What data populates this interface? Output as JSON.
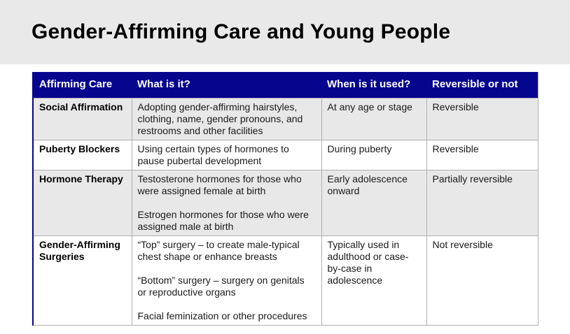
{
  "page": {
    "title": "Gender-Affirming Care and Young People"
  },
  "colors": {
    "header_bg": "#05058e",
    "header_text": "#ffffff",
    "alt_row_bg": "#e8e8e8",
    "title_band_bg": "#e9e9e9",
    "table_border": "#b0b0b0",
    "accent_left_border": "#05058e"
  },
  "table": {
    "headers": [
      "Affirming Care",
      "What is it?",
      "When is it used?",
      "Reversible or not"
    ],
    "rows": [
      {
        "care": "Social Affirmation",
        "what": [
          "Adopting gender-affirming hairstyles, clothing, name, gender pronouns, and restrooms and other facilities"
        ],
        "when": "At any age or stage",
        "reversible": "Reversible"
      },
      {
        "care": "Puberty Blockers",
        "what": [
          "Using certain types of hormones to pause pubertal development"
        ],
        "when": "During puberty",
        "reversible": "Reversible"
      },
      {
        "care": "Hormone Therapy",
        "what": [
          "Testosterone hormones for those who were assigned female at birth",
          "Estrogen hormones for those who were assigned male at birth"
        ],
        "when": "Early adolescence onward",
        "reversible": "Partially reversible"
      },
      {
        "care": "Gender-Affirming Surgeries",
        "what": [
          "“Top” surgery – to create male-typical chest shape or enhance breasts",
          "“Bottom” surgery – surgery on genitals or reproductive organs",
          "Facial feminization or other procedures"
        ],
        "when": "Typically used in adulthood or case-by-case in adolescence",
        "reversible": "Not reversible"
      }
    ]
  }
}
